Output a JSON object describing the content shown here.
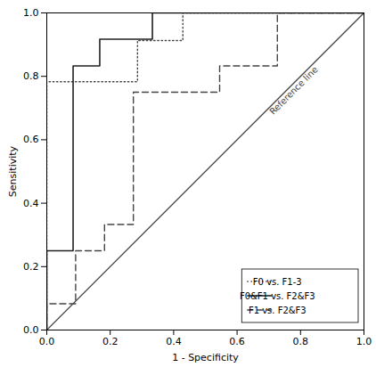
{
  "chart_data": {
    "type": "line",
    "xlabel": "1 - Specificity",
    "ylabel": "Sensitivity",
    "series": [
      {
        "name": "F0 vs. F1-3",
        "color": "#444444",
        "line_style": "dotted",
        "x": [
          0.0,
          0.0,
          0.143,
          0.143,
          0.286,
          0.286,
          0.429,
          0.429,
          1.0
        ],
        "values": [
          0.0,
          0.783,
          0.783,
          0.783,
          0.783,
          0.913,
          0.913,
          1.0,
          1.0
        ]
      },
      {
        "name": "F0&F1 vs. F2&F3",
        "color": "#222222",
        "line_style": "solid",
        "x": [
          0.0,
          0.0,
          0.083,
          0.083,
          0.167,
          0.167,
          0.333,
          0.333,
          1.0
        ],
        "values": [
          0.0,
          0.25,
          0.25,
          0.833,
          0.833,
          0.917,
          0.917,
          1.0,
          1.0
        ]
      },
      {
        "name": "F1 vs. F2&F3",
        "color": "#444444",
        "line_style": "dashed",
        "x": [
          0.0,
          0.0,
          0.091,
          0.091,
          0.182,
          0.182,
          0.273,
          0.273,
          0.545,
          0.545,
          0.727,
          0.727,
          1.0
        ],
        "values": [
          0.0,
          0.083,
          0.083,
          0.25,
          0.25,
          0.333,
          0.333,
          0.75,
          0.75,
          0.833,
          0.833,
          1.0,
          1.0
        ]
      }
    ],
    "reference_line": {
      "label": "Reference line",
      "color": "#444444",
      "x": [
        0,
        1
      ],
      "values": [
        0,
        1
      ]
    },
    "xlim": [
      0.0,
      1.0
    ],
    "ylim": [
      0.0,
      1.0
    ],
    "xticks": [
      {
        "value": 0.0,
        "label": "0.0"
      },
      0.2,
      0.4,
      0.6,
      0.8,
      {
        "value": 1.0,
        "label": "1.0"
      }
    ],
    "yticks": [
      {
        "value": 0.0,
        "label": "0.0"
      },
      0.2,
      0.4,
      0.6,
      0.8,
      {
        "value": 1.0,
        "label": "1.0"
      }
    ],
    "grid": false,
    "legend": "lower right"
  }
}
